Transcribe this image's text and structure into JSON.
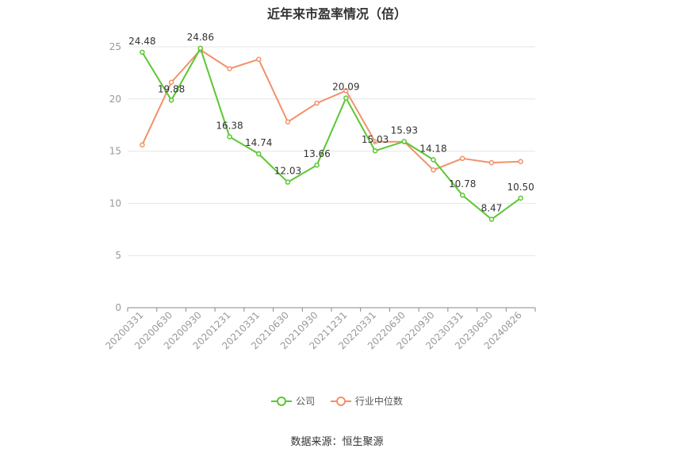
{
  "title": "近年来市盈率情况（倍）",
  "source": "数据来源：恒生聚源",
  "colors": {
    "company": "#5ac731",
    "industry": "#f2916b",
    "grid": "#e6e6e6",
    "axis": "#999999"
  },
  "chart_data": {
    "type": "line",
    "title": "近年来市盈率情况（倍）",
    "x": [
      "20200331",
      "20200630",
      "20200930",
      "20201231",
      "20210331",
      "20210630",
      "20210930",
      "20211231",
      "20220331",
      "20220630",
      "20220930",
      "20230331",
      "20230630",
      "20240826"
    ],
    "ylim": [
      0,
      25
    ],
    "yticks": [
      0,
      5,
      10,
      15,
      20,
      25
    ],
    "grid": true,
    "legend": "bottom-center",
    "series": [
      {
        "name": "公司",
        "color": "#5ac731",
        "values": [
          24.48,
          19.88,
          24.86,
          16.38,
          14.74,
          12.03,
          13.66,
          20.09,
          15.03,
          15.93,
          14.18,
          10.78,
          8.47,
          10.5
        ],
        "labels": [
          "24.48",
          "19.88",
          "24.86",
          "16.38",
          "14.74",
          "12.03",
          "13.66",
          "20.09",
          "15.03",
          "15.93",
          "14.18",
          "10.78",
          "8.47",
          "10.50"
        ]
      },
      {
        "name": "行业中位数",
        "color": "#f2916b",
        "values": [
          15.6,
          21.6,
          24.7,
          22.9,
          23.8,
          17.8,
          19.6,
          20.8,
          15.9,
          15.9,
          13.2,
          14.3,
          13.9,
          14.0
        ]
      }
    ]
  }
}
